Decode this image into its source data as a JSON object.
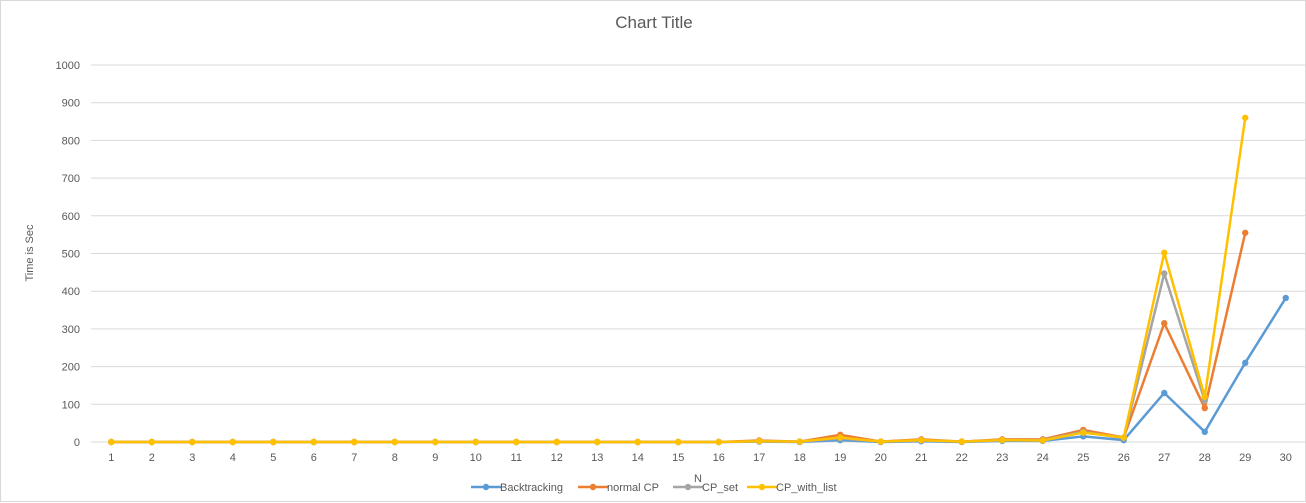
{
  "chart_data": {
    "type": "line",
    "title": "Chart Title",
    "xlabel": "N",
    "ylabel": "Time is Sec",
    "ylim": [
      0,
      1000
    ],
    "yticks": [
      "0",
      "100",
      "200",
      "300",
      "400",
      "500",
      "600",
      "700",
      "800",
      "900",
      "1000"
    ],
    "categories": [
      "1",
      "2",
      "3",
      "4",
      "5",
      "6",
      "7",
      "8",
      "9",
      "10",
      "11",
      "12",
      "13",
      "14",
      "15",
      "16",
      "17",
      "18",
      "19",
      "20",
      "21",
      "22",
      "23",
      "24",
      "25",
      "26",
      "27",
      "28",
      "29",
      "30"
    ],
    "grid": true,
    "legend_position": "bottom",
    "series": [
      {
        "name": "Backtracking",
        "color": "#5b9bd5",
        "values": [
          0,
          0,
          0,
          0,
          0,
          0,
          0,
          0,
          0,
          0,
          0,
          0,
          0,
          0,
          0,
          0,
          1,
          0,
          5,
          0,
          2,
          0,
          3,
          3,
          15,
          5,
          130,
          27,
          210,
          382
        ]
      },
      {
        "name": "normal CP",
        "color": "#ed7d31",
        "values": [
          0,
          0,
          0,
          0,
          0,
          0,
          0,
          0,
          0,
          0,
          0,
          0,
          0,
          0,
          0,
          0,
          4,
          1,
          19,
          1,
          7,
          1,
          7,
          7,
          32,
          12,
          315,
          90,
          555,
          null
        ]
      },
      {
        "name": "CP_set",
        "color": "#a5a5a5",
        "values": [
          0,
          0,
          0,
          0,
          0,
          0,
          0,
          0,
          0,
          0,
          0,
          0,
          0,
          0,
          0,
          0,
          2,
          1,
          10,
          1,
          4,
          1,
          5,
          5,
          27,
          10,
          447,
          110,
          null,
          null
        ]
      },
      {
        "name": "CP_with_list",
        "color": "#ffc000",
        "values": [
          0,
          0,
          0,
          0,
          0,
          0,
          0,
          0,
          0,
          0,
          0,
          0,
          0,
          0,
          0,
          0,
          2,
          1,
          12,
          1,
          5,
          1,
          5,
          4,
          25,
          12,
          502,
          120,
          860,
          null
        ]
      }
    ]
  }
}
